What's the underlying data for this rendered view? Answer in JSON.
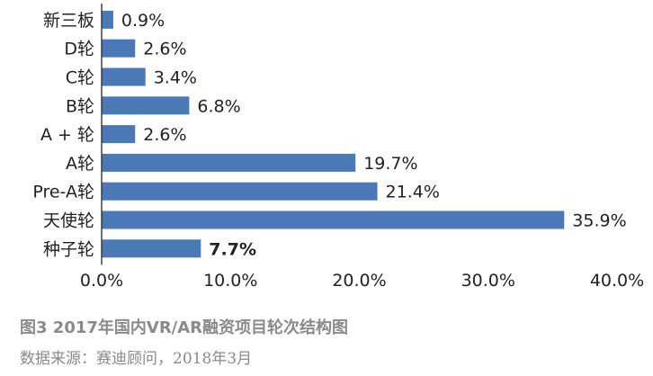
{
  "chart_data": {
    "type": "bar",
    "orientation": "horizontal",
    "categories": [
      "新三板",
      "D轮",
      "C轮",
      "B轮",
      "A + 轮",
      "A轮",
      "Pre-A轮",
      "天使轮",
      "种子轮"
    ],
    "values": [
      0.9,
      2.6,
      3.4,
      6.8,
      2.6,
      19.7,
      21.4,
      35.9,
      7.7
    ],
    "value_labels": [
      "0.9%",
      "2.6%",
      "3.4%",
      "6.8%",
      "2.6%",
      "19.7%",
      "21.4%",
      "35.9%",
      "7.7%"
    ],
    "bold_value_index": 8,
    "xlim": [
      0,
      40
    ],
    "x_ticks": [
      0,
      10,
      20,
      30,
      40
    ],
    "x_tick_labels": [
      "0.0%",
      "10.0%",
      "20.0%",
      "30.0%",
      "40.0%"
    ],
    "grid": false,
    "bar_color": "#4a79b5"
  },
  "caption": {
    "figure": "图3  2017年国内VR/AR融资项目轮次结构图",
    "source": "数据来源：赛迪顾问，2018年3月"
  }
}
